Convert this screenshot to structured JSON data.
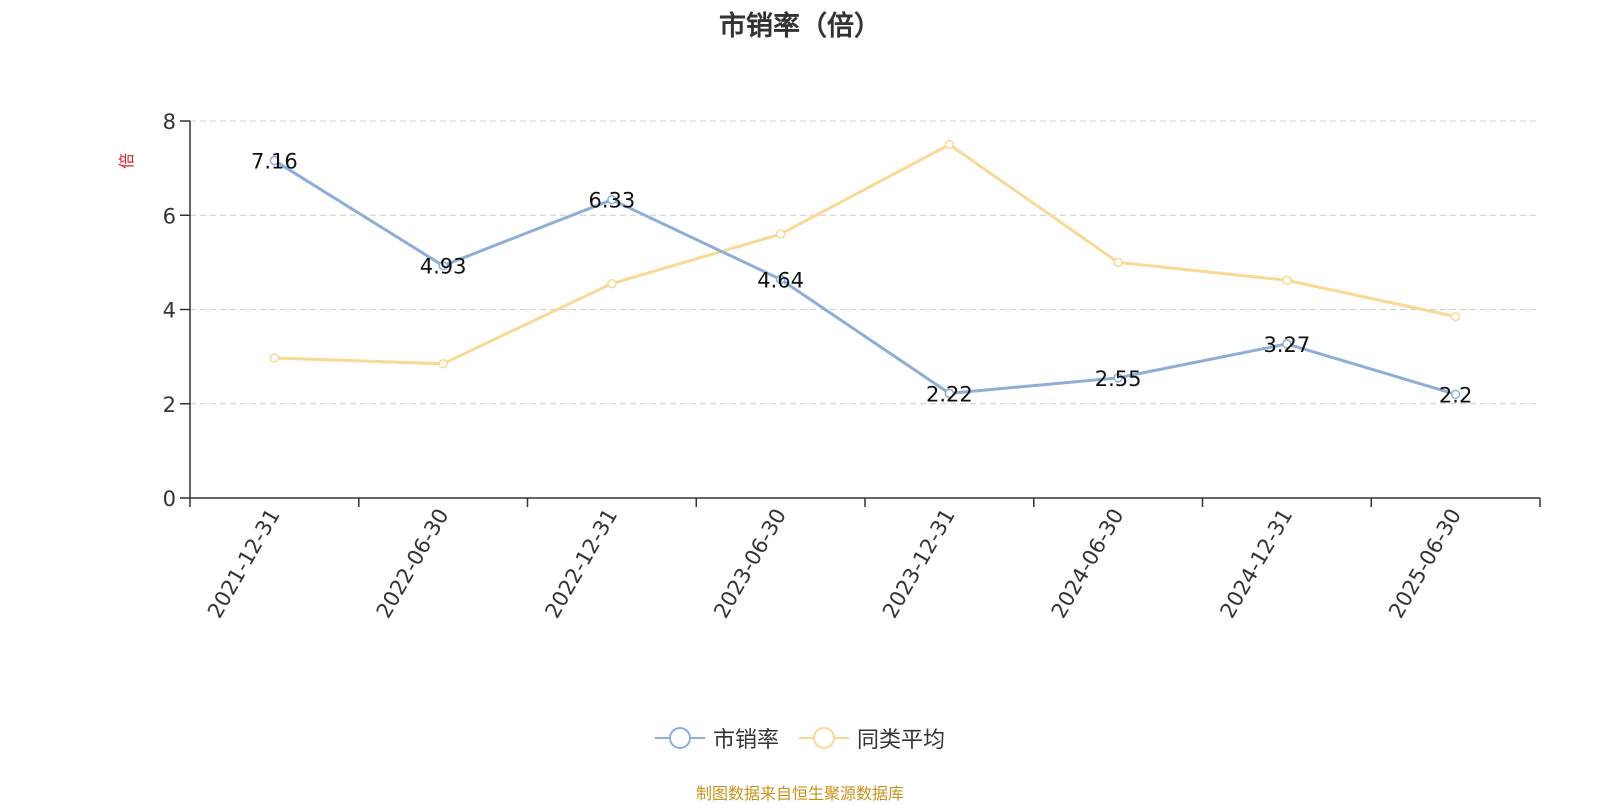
{
  "chart_data": {
    "type": "line",
    "title": "市销率（倍）",
    "ylabel": "倍",
    "categories": [
      "2021-12-31",
      "2022-06-30",
      "2022-12-31",
      "2023-06-30",
      "2023-12-31",
      "2024-06-30",
      "2024-12-31",
      "2025-06-30"
    ],
    "ylim": [
      0,
      8
    ],
    "yticks": [
      0,
      2,
      4,
      6,
      8
    ],
    "grid": true,
    "legend_position": "bottom",
    "series": [
      {
        "name": "市销率",
        "color": "#8eaed8",
        "values": [
          7.16,
          4.93,
          6.33,
          4.64,
          2.22,
          2.55,
          3.27,
          2.2
        ],
        "labels": [
          "7.16",
          "4.93",
          "6.33",
          "4.64",
          "2.22",
          "2.55",
          "3.27",
          "2.2"
        ]
      },
      {
        "name": "同类平均",
        "color": "#f9d995",
        "values": [
          2.97,
          2.85,
          4.55,
          5.6,
          7.5,
          5.0,
          4.62,
          3.85
        ]
      }
    ]
  },
  "source_note": "制图数据来自恒生聚源数据库",
  "colors": {
    "ylabel": "#e02020",
    "axis": "#333333",
    "grid": "#cccccc",
    "source": "#c8921a"
  }
}
